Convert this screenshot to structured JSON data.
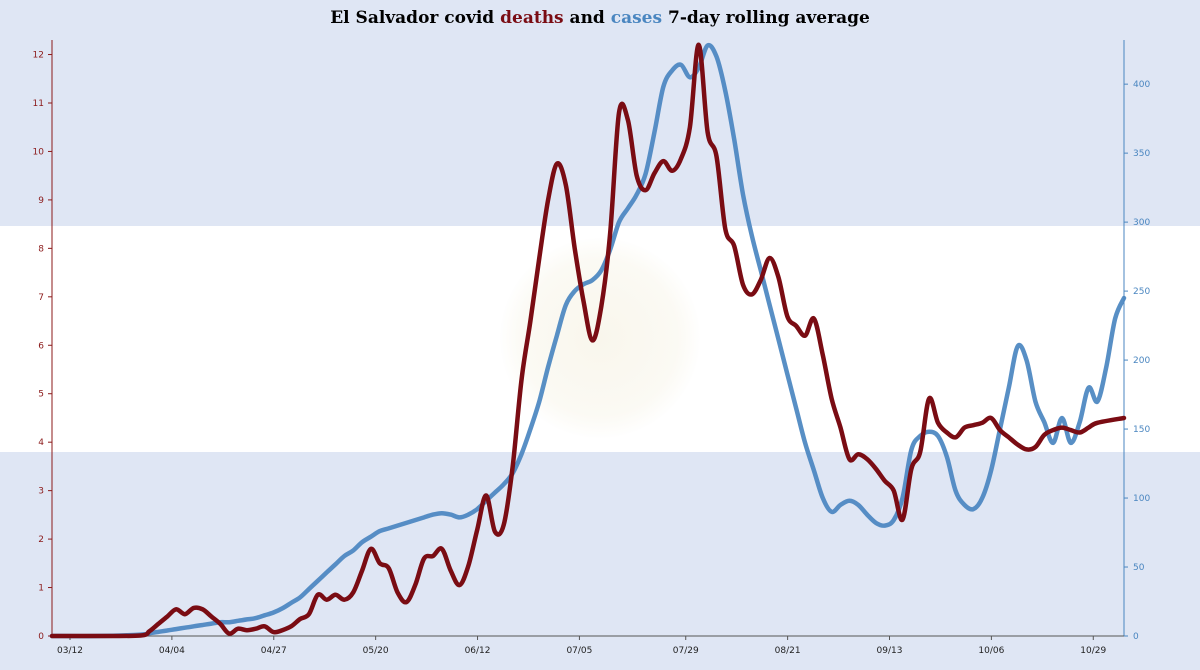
{
  "title": {
    "prefix": "El Salvador covid ",
    "deaths_word": "deaths",
    "middle": " and ",
    "cases_word": "cases",
    "suffix": " 7-day rolling average"
  },
  "colors": {
    "deaths": "#7a0c13",
    "cases": "#4a86c0",
    "left_axis": "#8b1a1a",
    "right_axis": "#4a86c0"
  },
  "chart_data": {
    "type": "line",
    "title": "El Salvador covid deaths and cases 7-day rolling average",
    "xlabel": "",
    "ylabel": "",
    "x_tick_labels": [
      "03/12",
      "04/04",
      "04/27",
      "05/20",
      "06/12",
      "07/05",
      "07/29",
      "08/21",
      "09/13",
      "10/06",
      "10/29"
    ],
    "x_tick_days": [
      0,
      23,
      46,
      69,
      92,
      115,
      139,
      162,
      185,
      208,
      231
    ],
    "x_range_days": [
      0,
      242
    ],
    "y_left": {
      "range": [
        0,
        12.3
      ],
      "ticks": [
        0,
        1,
        2,
        3,
        4,
        5,
        6,
        7,
        8,
        9,
        10,
        11,
        12
      ]
    },
    "y_right": {
      "range": [
        0,
        432
      ],
      "ticks": [
        0,
        50,
        100,
        150,
        200,
        250,
        300,
        350,
        400
      ]
    },
    "grid": false,
    "series": [
      {
        "name": "deaths",
        "axis": "left",
        "points": [
          [
            0,
            0
          ],
          [
            10,
            0
          ],
          [
            20,
            0.01
          ],
          [
            22,
            0.1
          ],
          [
            24,
            0.25
          ],
          [
            26,
            0.4
          ],
          [
            28,
            0.55
          ],
          [
            30,
            0.45
          ],
          [
            32,
            0.58
          ],
          [
            34,
            0.55
          ],
          [
            36,
            0.4
          ],
          [
            38,
            0.25
          ],
          [
            40,
            0.05
          ],
          [
            42,
            0.15
          ],
          [
            44,
            0.12
          ],
          [
            46,
            0.15
          ],
          [
            48,
            0.2
          ],
          [
            50,
            0.08
          ],
          [
            52,
            0.12
          ],
          [
            54,
            0.2
          ],
          [
            56,
            0.35
          ],
          [
            58,
            0.45
          ],
          [
            60,
            0.85
          ],
          [
            62,
            0.75
          ],
          [
            64,
            0.85
          ],
          [
            66,
            0.75
          ],
          [
            68,
            0.9
          ],
          [
            70,
            1.35
          ],
          [
            72,
            1.8
          ],
          [
            74,
            1.5
          ],
          [
            76,
            1.4
          ],
          [
            78,
            0.9
          ],
          [
            80,
            0.7
          ],
          [
            82,
            1.05
          ],
          [
            84,
            1.6
          ],
          [
            86,
            1.65
          ],
          [
            88,
            1.8
          ],
          [
            90,
            1.35
          ],
          [
            92,
            1.05
          ],
          [
            94,
            1.45
          ],
          [
            96,
            2.2
          ],
          [
            98,
            2.9
          ],
          [
            100,
            2.15
          ],
          [
            102,
            2.3
          ],
          [
            104,
            3.5
          ],
          [
            106,
            5.3
          ],
          [
            108,
            6.5
          ],
          [
            110,
            7.8
          ],
          [
            112,
            9.0
          ],
          [
            114,
            9.75
          ],
          [
            116,
            9.3
          ],
          [
            118,
            8.0
          ],
          [
            120,
            6.9
          ],
          [
            122,
            6.1
          ],
          [
            124,
            6.8
          ],
          [
            126,
            8.3
          ],
          [
            128,
            10.8
          ],
          [
            130,
            10.65
          ],
          [
            132,
            9.5
          ],
          [
            134,
            9.2
          ],
          [
            136,
            9.55
          ],
          [
            138,
            9.8
          ],
          [
            140,
            9.6
          ],
          [
            142,
            9.85
          ],
          [
            144,
            10.5
          ],
          [
            146,
            12.2
          ],
          [
            148,
            10.4
          ],
          [
            150,
            9.9
          ],
          [
            152,
            8.4
          ],
          [
            154,
            8.05
          ],
          [
            156,
            7.25
          ],
          [
            158,
            7.05
          ],
          [
            160,
            7.35
          ],
          [
            162,
            7.8
          ],
          [
            164,
            7.4
          ],
          [
            166,
            6.6
          ],
          [
            168,
            6.4
          ],
          [
            170,
            6.2
          ],
          [
            172,
            6.55
          ],
          [
            174,
            5.8
          ],
          [
            176,
            4.9
          ],
          [
            178,
            4.3
          ],
          [
            180,
            3.65
          ],
          [
            182,
            3.75
          ],
          [
            184,
            3.65
          ],
          [
            186,
            3.45
          ],
          [
            188,
            3.2
          ],
          [
            190,
            3.0
          ],
          [
            192,
            2.4
          ],
          [
            194,
            3.45
          ],
          [
            196,
            3.8
          ],
          [
            198,
            4.9
          ],
          [
            200,
            4.4
          ],
          [
            202,
            4.2
          ],
          [
            204,
            4.1
          ],
          [
            206,
            4.3
          ],
          [
            208,
            4.35
          ],
          [
            210,
            4.4
          ],
          [
            212,
            4.5
          ],
          [
            214,
            4.25
          ],
          [
            216,
            4.1
          ],
          [
            218,
            3.95
          ],
          [
            220,
            3.85
          ],
          [
            222,
            3.9
          ],
          [
            224,
            4.15
          ],
          [
            226,
            4.25
          ],
          [
            228,
            4.3
          ],
          [
            230,
            4.25
          ],
          [
            232,
            4.2
          ],
          [
            234,
            4.3
          ],
          [
            236,
            4.4
          ],
          [
            242,
            4.5
          ]
        ]
      },
      {
        "name": "cases",
        "axis": "right",
        "points": [
          [
            0,
            0
          ],
          [
            10,
            0
          ],
          [
            20,
            1
          ],
          [
            22,
            2
          ],
          [
            24,
            3
          ],
          [
            26,
            4
          ],
          [
            28,
            5
          ],
          [
            30,
            6
          ],
          [
            32,
            7
          ],
          [
            34,
            8
          ],
          [
            36,
            9
          ],
          [
            38,
            10
          ],
          [
            40,
            10
          ],
          [
            42,
            11
          ],
          [
            44,
            12
          ],
          [
            46,
            13
          ],
          [
            48,
            15
          ],
          [
            50,
            17
          ],
          [
            52,
            20
          ],
          [
            54,
            24
          ],
          [
            56,
            28
          ],
          [
            58,
            34
          ],
          [
            60,
            40
          ],
          [
            62,
            46
          ],
          [
            64,
            52
          ],
          [
            66,
            58
          ],
          [
            68,
            62
          ],
          [
            70,
            68
          ],
          [
            72,
            72
          ],
          [
            74,
            76
          ],
          [
            76,
            78
          ],
          [
            78,
            80
          ],
          [
            80,
            82
          ],
          [
            82,
            84
          ],
          [
            84,
            86
          ],
          [
            86,
            88
          ],
          [
            88,
            89
          ],
          [
            90,
            88
          ],
          [
            92,
            86
          ],
          [
            94,
            88
          ],
          [
            96,
            92
          ],
          [
            98,
            98
          ],
          [
            100,
            104
          ],
          [
            102,
            110
          ],
          [
            104,
            118
          ],
          [
            106,
            132
          ],
          [
            108,
            150
          ],
          [
            110,
            170
          ],
          [
            112,
            195
          ],
          [
            114,
            218
          ],
          [
            116,
            240
          ],
          [
            118,
            250
          ],
          [
            120,
            255
          ],
          [
            122,
            258
          ],
          [
            124,
            265
          ],
          [
            126,
            280
          ],
          [
            128,
            300
          ],
          [
            130,
            310
          ],
          [
            132,
            320
          ],
          [
            134,
            335
          ],
          [
            136,
            365
          ],
          [
            138,
            398
          ],
          [
            140,
            410
          ],
          [
            142,
            414
          ],
          [
            144,
            405
          ],
          [
            146,
            412
          ],
          [
            148,
            428
          ],
          [
            150,
            420
          ],
          [
            152,
            395
          ],
          [
            154,
            360
          ],
          [
            156,
            320
          ],
          [
            158,
            290
          ],
          [
            160,
            265
          ],
          [
            162,
            240
          ],
          [
            164,
            215
          ],
          [
            166,
            190
          ],
          [
            168,
            165
          ],
          [
            170,
            140
          ],
          [
            172,
            120
          ],
          [
            174,
            100
          ],
          [
            176,
            90
          ],
          [
            178,
            95
          ],
          [
            180,
            98
          ],
          [
            182,
            95
          ],
          [
            184,
            88
          ],
          [
            186,
            82
          ],
          [
            188,
            80
          ],
          [
            190,
            84
          ],
          [
            192,
            100
          ],
          [
            194,
            135
          ],
          [
            196,
            145
          ],
          [
            198,
            148
          ],
          [
            200,
            145
          ],
          [
            202,
            130
          ],
          [
            204,
            105
          ],
          [
            206,
            95
          ],
          [
            208,
            92
          ],
          [
            210,
            100
          ],
          [
            212,
            120
          ],
          [
            214,
            150
          ],
          [
            216,
            180
          ],
          [
            218,
            210
          ],
          [
            220,
            200
          ],
          [
            222,
            170
          ],
          [
            224,
            155
          ],
          [
            226,
            140
          ],
          [
            228,
            158
          ],
          [
            230,
            140
          ],
          [
            232,
            155
          ],
          [
            234,
            180
          ],
          [
            236,
            170
          ],
          [
            238,
            195
          ],
          [
            240,
            230
          ],
          [
            242,
            245
          ]
        ]
      }
    ]
  }
}
